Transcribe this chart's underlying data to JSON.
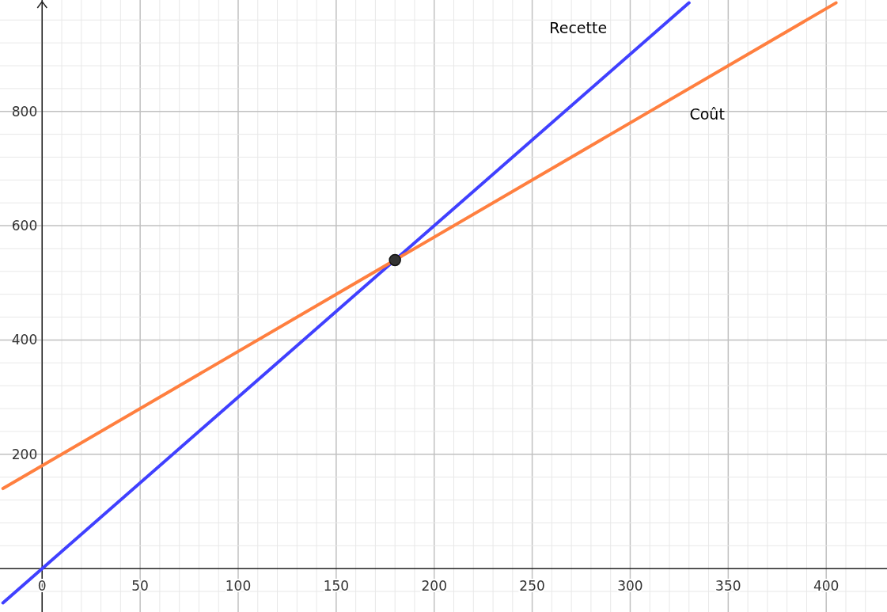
{
  "chart_data": {
    "type": "line",
    "xlim": [
      -21.5,
      431
    ],
    "ylim": [
      -76,
      995
    ],
    "xticks": [
      0,
      {
        "value": 10,
        "label": null
      },
      {
        "value": 20,
        "label": null
      },
      {
        "value": 30,
        "label": null
      },
      {
        "value": 40,
        "label": null
      },
      50,
      {
        "value": 60,
        "label": null
      },
      {
        "value": 70,
        "label": null
      },
      {
        "value": 80,
        "label": null
      },
      {
        "value": 90,
        "label": null
      },
      100,
      {
        "value": 110,
        "label": null
      },
      {
        "value": 120,
        "label": null
      },
      {
        "value": 130,
        "label": null
      },
      {
        "value": 140,
        "label": null
      },
      150,
      {
        "value": 160,
        "label": null
      },
      {
        "value": 170,
        "label": null
      },
      {
        "value": 180,
        "label": null
      },
      {
        "value": 190,
        "label": null
      },
      200,
      {
        "value": 210,
        "label": null
      },
      {
        "value": 220,
        "label": null
      },
      {
        "value": 230,
        "label": null
      },
      {
        "value": 240,
        "label": null
      },
      250,
      {
        "value": 260,
        "label": null
      },
      {
        "value": 270,
        "label": null
      },
      {
        "value": 280,
        "label": null
      },
      {
        "value": 290,
        "label": null
      },
      300,
      {
        "value": 310,
        "label": null
      },
      {
        "value": 320,
        "label": null
      },
      {
        "value": 330,
        "label": null
      },
      {
        "value": 340,
        "label": null
      },
      350,
      {
        "value": 360,
        "label": null
      },
      {
        "value": 370,
        "label": null
      },
      {
        "value": 380,
        "label": null
      },
      {
        "value": 390,
        "label": null
      },
      400,
      {
        "value": 410,
        "label": null
      },
      {
        "value": 420,
        "label": null
      }
    ],
    "yticks": [
      {
        "value": -40,
        "label": null
      },
      {
        "value": 40,
        "label": null
      },
      {
        "value": 80,
        "label": null
      },
      {
        "value": 120,
        "label": null
      },
      {
        "value": 160,
        "label": null
      },
      200,
      {
        "value": 240,
        "label": null
      },
      {
        "value": 280,
        "label": null
      },
      {
        "value": 320,
        "label": null
      },
      {
        "value": 360,
        "label": null
      },
      400,
      {
        "value": 440,
        "label": null
      },
      {
        "value": 480,
        "label": null
      },
      {
        "value": 520,
        "label": null
      },
      {
        "value": 560,
        "label": null
      },
      600,
      {
        "value": 640,
        "label": null
      },
      {
        "value": 680,
        "label": null
      },
      {
        "value": 720,
        "label": null
      },
      {
        "value": 760,
        "label": null
      },
      800,
      {
        "value": 840,
        "label": null
      },
      {
        "value": 880,
        "label": null
      },
      {
        "value": 920,
        "label": null
      },
      {
        "value": 960,
        "label": null
      }
    ],
    "grid": true,
    "line_style": "solid",
    "series": [
      {
        "name": "Recette",
        "color": "#4040ff",
        "x": [
          -20,
          330
        ],
        "values": [
          -60,
          990
        ],
        "marker": "none"
      },
      {
        "name": "Coût",
        "color": "#ff7f3f",
        "x": [
          -20,
          405
        ],
        "values": [
          140,
          990
        ],
        "marker": "none"
      },
      {
        "type": "scatter",
        "color": "#333333",
        "x": [
          180
        ],
        "values": [
          540
        ],
        "marker": "circle"
      }
    ]
  }
}
